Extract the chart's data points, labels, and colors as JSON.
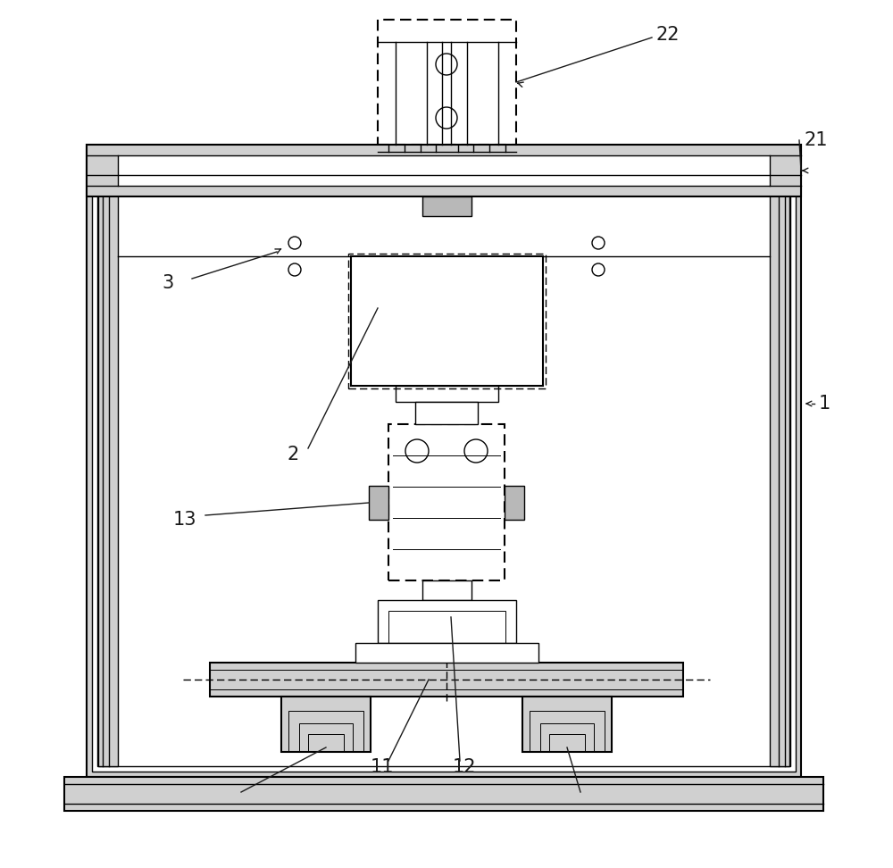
{
  "figsize": [
    10.0,
    9.72
  ],
  "dpi": 100,
  "bg": "#ffffff",
  "lc": "#000000",
  "gray1": "#d0d0d0",
  "gray2": "#b8b8b8",
  "gray3": "#e8e8e8",
  "lw_thick": 2.0,
  "lw_med": 1.5,
  "lw_thin": 1.0,
  "lw_vt": 0.7,
  "dash_pat": [
    6,
    3
  ],
  "label_fs": 15
}
